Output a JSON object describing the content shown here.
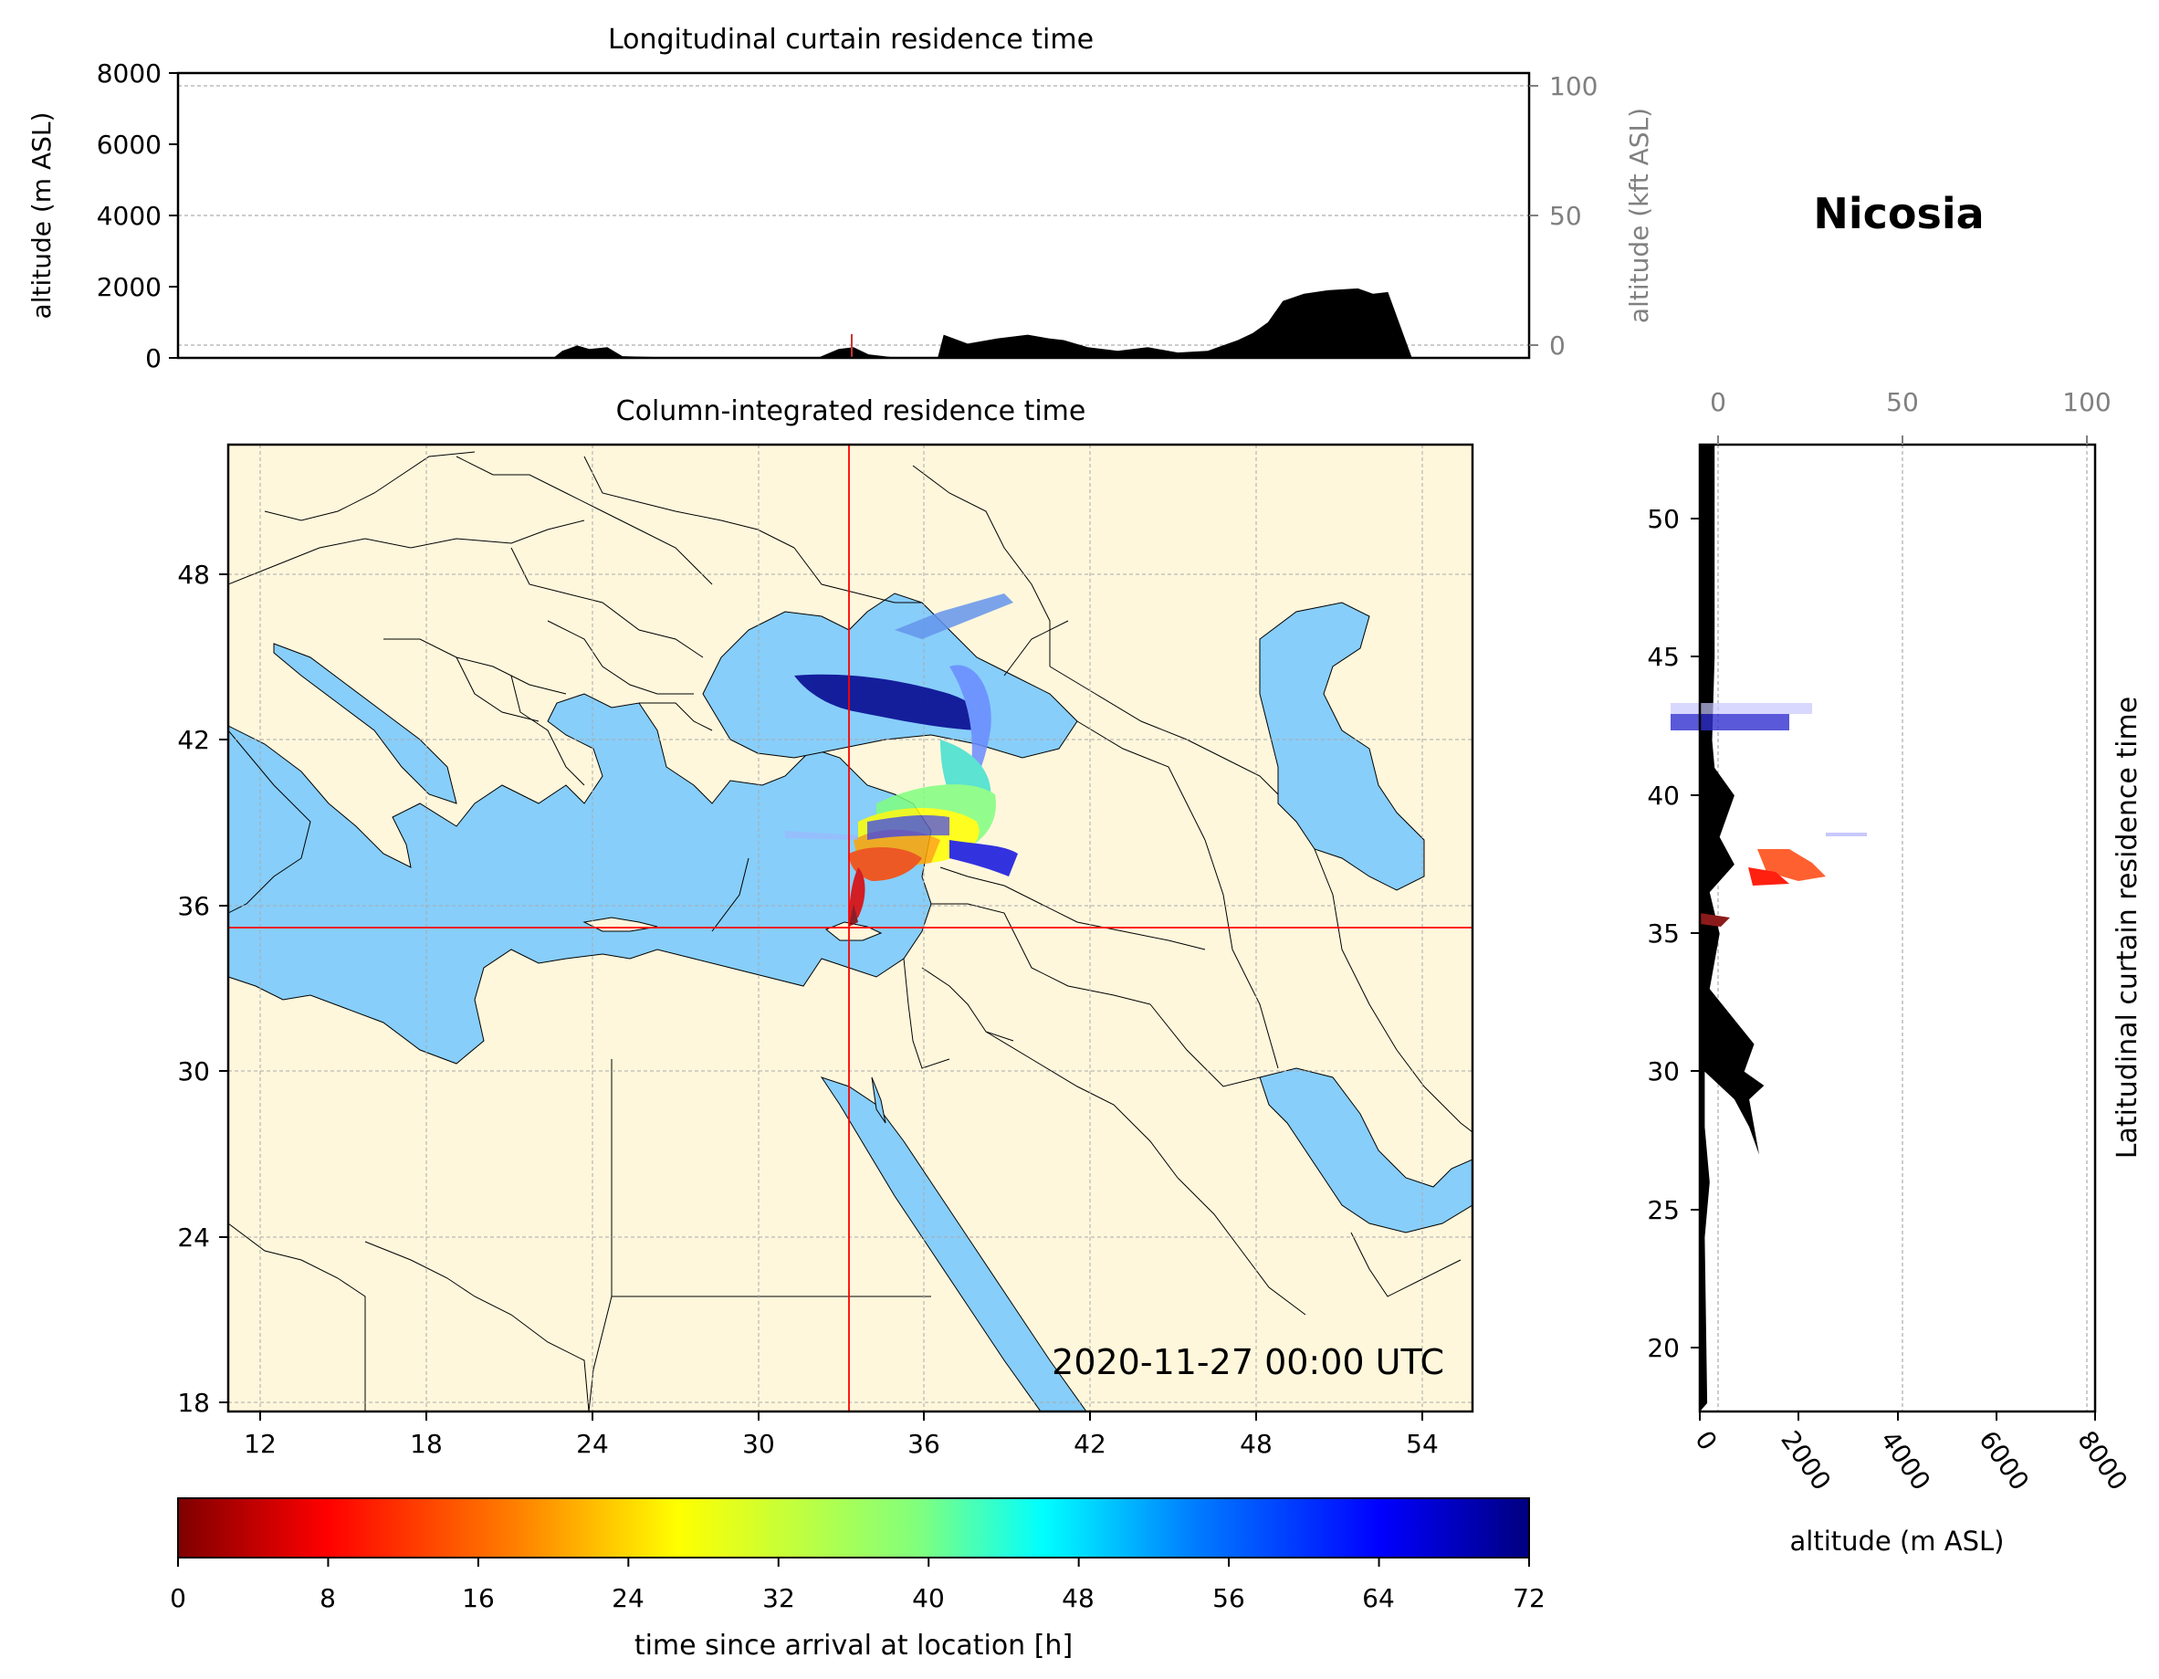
{
  "location": {
    "name": "Nicosia",
    "lon": 33.4,
    "lat": 35.2
  },
  "timestamp": "2020-11-27 00:00 UTC",
  "top_panel": {
    "title": "Longitudinal curtain residence time",
    "ylabel_left": "altitude (m ASL)",
    "ylabel_right": "altitude (kft ASL)",
    "y_ticks_left": [
      "0",
      "2000",
      "4000",
      "6000",
      "8000"
    ],
    "y_ticks_right": [
      "0",
      "50",
      "100"
    ]
  },
  "map_panel": {
    "title": "Column-integrated residence time",
    "lon_ticks": [
      "12",
      "18",
      "24",
      "30",
      "36",
      "42",
      "48",
      "54"
    ],
    "lat_ticks": [
      "18",
      "24",
      "30",
      "36",
      "42",
      "48"
    ]
  },
  "right_panel": {
    "title": "Latitudinal curtain residence time",
    "xlabel": "altitude (m ASL)",
    "x_ticks_bottom": [
      "0",
      "2000",
      "4000",
      "6000",
      "8000"
    ],
    "x_ticks_top": [
      "0",
      "50",
      "100"
    ],
    "y_ticks": [
      "20",
      "25",
      "30",
      "35",
      "40",
      "45",
      "50"
    ]
  },
  "colorbar": {
    "label": "time since arrival at location [h]",
    "ticks": [
      "0",
      "8",
      "16",
      "24",
      "32",
      "40",
      "48",
      "56",
      "64",
      "72"
    ],
    "range": [
      0,
      72
    ],
    "colormap": "jet_r"
  },
  "colors": {
    "sea": "#87cefa",
    "land": "#fff7dc",
    "terrain": "#000000",
    "marker": "#ff0000"
  },
  "chart_data": [
    {
      "type": "area",
      "name": "longitudinal-terrain",
      "x_unit": "degrees east",
      "y_unit": "m ASL",
      "xlim": [
        11,
        56
      ],
      "ylim": [
        0,
        8000
      ],
      "x": [
        11,
        23.5,
        23.8,
        24.3,
        24.7,
        25.3,
        25.8,
        28,
        32.3,
        33,
        33.5,
        34,
        35,
        36.3,
        36.5,
        37.3,
        38.3,
        39.3,
        40,
        40.5,
        41.3,
        42.3,
        43.3,
        44.3,
        45.3,
        46.3,
        46.8,
        47.3,
        47.8,
        48.5,
        49.3,
        50.3,
        50.8,
        51.3,
        52.1
      ],
      "values": [
        0,
        0,
        200,
        350,
        250,
        300,
        50,
        0,
        0,
        250,
        300,
        100,
        0,
        0,
        650,
        400,
        550,
        650,
        550,
        500,
        300,
        200,
        300,
        150,
        200,
        500,
        700,
        1000,
        1600,
        1800,
        1900,
        1950,
        1800,
        1850,
        0
      ]
    },
    {
      "type": "area",
      "name": "latitudinal-terrain",
      "x_unit": "m ASL",
      "y_unit": "degrees north",
      "xlim": [
        0,
        8000
      ],
      "ylim": [
        17.7,
        52.7
      ],
      "x": [
        0,
        150,
        100,
        200,
        100,
        100,
        700,
        1000,
        1200,
        1000,
        1300,
        900,
        1100,
        200,
        400,
        200,
        700,
        400,
        700,
        300,
        250,
        300,
        300,
        0
      ],
      "y": [
        17.7,
        18,
        24,
        26,
        28,
        30,
        29,
        28,
        27,
        29,
        29.5,
        30,
        31,
        33,
        35,
        36.5,
        37.5,
        38.5,
        40,
        41,
        42,
        45,
        52.7,
        52.7
      ]
    }
  ]
}
